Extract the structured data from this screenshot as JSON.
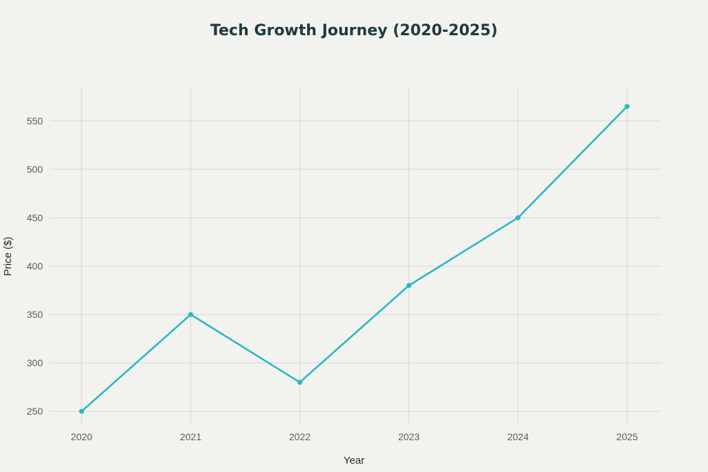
{
  "chart_data": {
    "type": "line",
    "title": "Tech Growth Journey (2020-2025)",
    "xlabel": "Year",
    "ylabel": "Price ($)",
    "x": [
      "2020",
      "2021",
      "2022",
      "2023",
      "2024",
      "2025"
    ],
    "series": [
      {
        "values": [
          250,
          350,
          280,
          380,
          450,
          565
        ]
      }
    ],
    "y_ticks": [
      250,
      300,
      350,
      400,
      450,
      500,
      550
    ],
    "ylim": [
      238,
      585
    ],
    "grid": true,
    "legend": "none",
    "colors": {
      "line": "#2bb7c7",
      "grid": "#d8d8d3",
      "title": "#1f3a3d"
    }
  }
}
